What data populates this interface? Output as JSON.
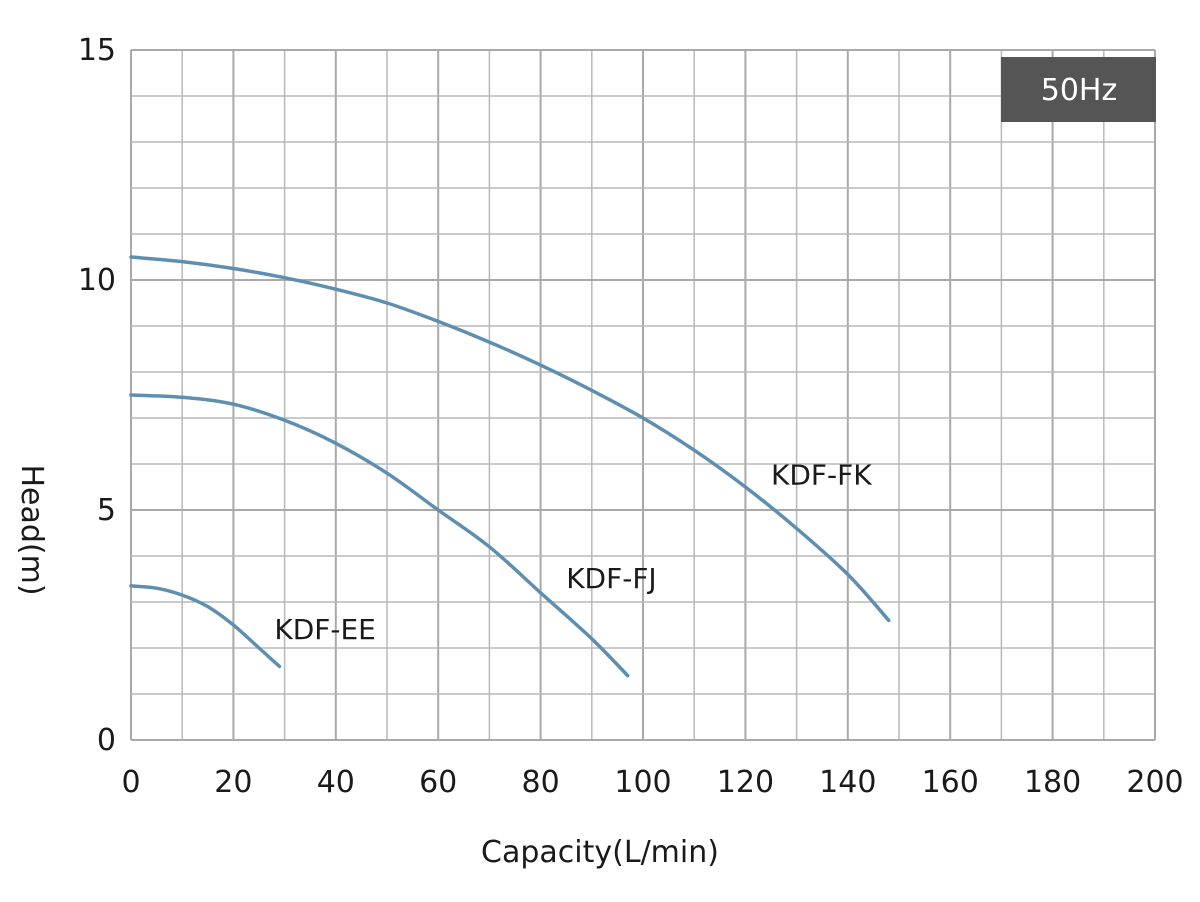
{
  "chart_data": {
    "type": "line",
    "title": "",
    "xlabel": "Capacity(L/min)",
    "ylabel": "Head(m)",
    "xlim": [
      0,
      200
    ],
    "ylim": [
      0,
      15
    ],
    "x_ticks": [
      "0",
      "20",
      "40",
      "60",
      "80",
      "100",
      "120",
      "140",
      "160",
      "180",
      "200"
    ],
    "y_ticks": [
      "0",
      "5",
      "10",
      "15"
    ],
    "grid": true,
    "badge": "50Hz",
    "colors": {
      "curve": "#5e8fb0",
      "grid": "#a9a9a9",
      "badge_bg": "#555555"
    },
    "series": [
      {
        "name": "KDF-FK",
        "x": [
          0,
          10,
          20,
          30,
          40,
          50,
          60,
          70,
          80,
          90,
          100,
          110,
          120,
          130,
          140,
          148
        ],
        "y": [
          10.5,
          10.4,
          10.25,
          10.05,
          9.8,
          9.5,
          9.1,
          8.65,
          8.15,
          7.6,
          7.0,
          6.3,
          5.5,
          4.6,
          3.6,
          2.6
        ]
      },
      {
        "name": "KDF-FJ",
        "x": [
          0,
          10,
          20,
          30,
          40,
          50,
          60,
          70,
          80,
          90,
          97
        ],
        "y": [
          7.5,
          7.45,
          7.3,
          6.95,
          6.45,
          5.8,
          5.0,
          4.2,
          3.2,
          2.2,
          1.4
        ]
      },
      {
        "name": "KDF-EE",
        "x": [
          0,
          5,
          10,
          15,
          20,
          25,
          29
        ],
        "y": [
          3.35,
          3.3,
          3.15,
          2.9,
          2.5,
          2.0,
          1.6
        ]
      }
    ]
  }
}
